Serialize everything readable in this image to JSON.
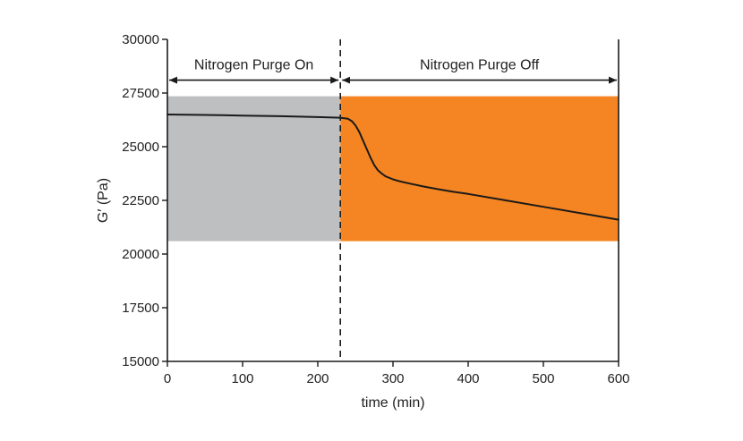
{
  "chart_data": {
    "type": "line",
    "xlabel": "time (min)",
    "ylabel": "G′ (Pa)",
    "xlim": [
      0,
      600
    ],
    "ylim": [
      15000,
      30000
    ],
    "x_ticks": [
      "0",
      "100",
      "200",
      "300",
      "400",
      "500",
      "600"
    ],
    "y_ticks": [
      "15000",
      "17500",
      "20000",
      "22500",
      "25000",
      "27500",
      "30000"
    ],
    "x_tick_values": [
      0,
      100,
      200,
      300,
      400,
      500,
      600
    ],
    "y_tick_values": [
      15000,
      17500,
      20000,
      22500,
      25000,
      27500,
      30000
    ],
    "grid": false,
    "series": [
      {
        "color": "#1a1a1a",
        "x": [
          0,
          50,
          100,
          150,
          200,
          230,
          240,
          245,
          250,
          255,
          260,
          265,
          270,
          275,
          280,
          285,
          290,
          300,
          310,
          320,
          340,
          360,
          380,
          400,
          450,
          500,
          550,
          600
        ],
        "y": [
          26500,
          26480,
          26450,
          26420,
          26380,
          26350,
          26300,
          26200,
          26000,
          25700,
          25300,
          24900,
          24500,
          24150,
          23900,
          23750,
          23620,
          23480,
          23380,
          23300,
          23150,
          23020,
          22900,
          22800,
          22500,
          22200,
          21900,
          21600
        ]
      }
    ],
    "regions": [
      {
        "x": [
          0,
          230
        ],
        "y": [
          20600,
          27350
        ],
        "color": "#bebfc1"
      },
      {
        "x": [
          230,
          600
        ],
        "y": [
          20600,
          27350
        ],
        "color": "#f58522"
      }
    ],
    "divider_x": 230,
    "annotations": [
      {
        "text": "Nitrogen Purge On",
        "x_start": 0,
        "x_end": 230,
        "y": 28100
      },
      {
        "text": "Nitrogen Purge Off",
        "x_start": 230,
        "x_end": 600,
        "y": 28100
      }
    ]
  }
}
